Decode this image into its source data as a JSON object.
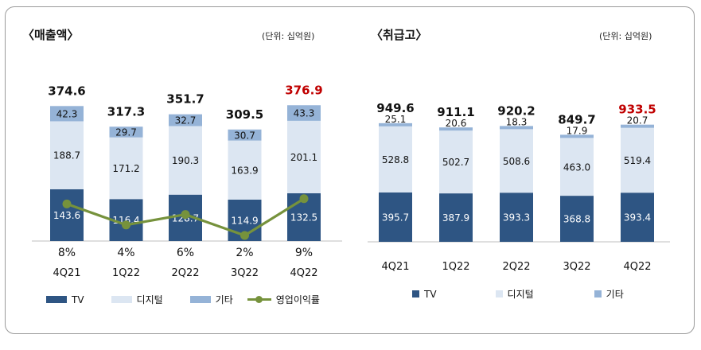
{
  "left": {
    "title": "〈매출액〉",
    "unit": "(단위:  십억원)"
  },
  "right": {
    "title": "〈취급고〉",
    "unit": "(단위:  십억원)"
  },
  "legend_left": {
    "tv": "TV",
    "digital": "디지털",
    "other": "기타",
    "margin": "영업이익률"
  },
  "legend_right": {
    "tv": "TV",
    "digital": "디지털",
    "other": "기타"
  },
  "colors": {
    "tv": "#2e5583",
    "digital": "#dce6f2",
    "other": "#95b3d7",
    "line": "#76923c",
    "highlight": "#c00000"
  },
  "chart_data": [
    {
      "type": "bar",
      "stacked": true,
      "title": "〈매출액〉",
      "categories": [
        "4Q21",
        "1Q22",
        "2Q22",
        "3Q22",
        "4Q22"
      ],
      "series": [
        {
          "name": "TV",
          "values": [
            143.6,
            116.4,
            128.7,
            114.9,
            132.5
          ]
        },
        {
          "name": "디지털",
          "values": [
            188.7,
            171.2,
            190.3,
            163.9,
            201.1
          ]
        },
        {
          "name": "기타",
          "values": [
            42.3,
            29.7,
            32.7,
            30.7,
            43.3
          ]
        }
      ],
      "totals": [
        "374.6",
        "317.3",
        "351.7",
        "309.5",
        "376.9"
      ],
      "line_series": {
        "name": "영업이익률",
        "values": [
          8,
          4,
          6,
          2,
          9
        ],
        "labels": [
          "8%",
          "4%",
          "6%",
          "2%",
          "9%"
        ]
      },
      "highlight_index": 4,
      "legend_placement": "bottom"
    },
    {
      "type": "bar",
      "stacked": true,
      "title": "〈취급고〉",
      "categories": [
        "4Q21",
        "1Q22",
        "2Q22",
        "3Q22",
        "4Q22"
      ],
      "series": [
        {
          "name": "TV",
          "values": [
            395.7,
            387.9,
            393.3,
            368.8,
            393.4
          ]
        },
        {
          "name": "디지털",
          "values": [
            528.8,
            502.7,
            508.6,
            463.0,
            519.4
          ]
        },
        {
          "name": "기타",
          "values": [
            25.1,
            20.6,
            18.3,
            17.9,
            20.7
          ]
        }
      ],
      "totals": [
        "949.6",
        "911.1",
        "920.2",
        "849.7",
        "933.5"
      ],
      "highlight_index": 4,
      "legend_placement": "bottom"
    }
  ]
}
